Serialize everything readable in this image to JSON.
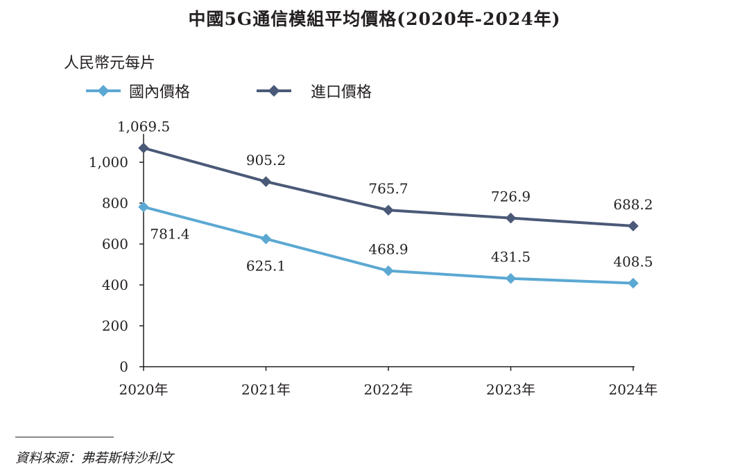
{
  "chart_data": {
    "type": "line",
    "title": "中國5G通信模組平均價格(2020年-2024年)",
    "ylabel": "人民幣元每片",
    "xlabel": "",
    "categories": [
      "2020年",
      "2021年",
      "2022年",
      "2023年",
      "2024年"
    ],
    "yticks": [
      "0",
      "200",
      "400",
      "600",
      "800",
      "1,000"
    ],
    "ylim": [
      0,
      1150
    ],
    "legend_position": "top-left",
    "series": [
      {
        "name": "國內價格",
        "color": "#5ba8d3",
        "values": [
          781.4,
          625.1,
          468.9,
          431.5,
          408.5
        ],
        "labels": [
          "781.4",
          "625.1",
          "468.9",
          "431.5",
          "408.5"
        ],
        "label_position": [
          "below",
          "below",
          "above",
          "above",
          "above"
        ]
      },
      {
        "name": "進口價格",
        "color": "#4a5977",
        "values": [
          1069.5,
          905.2,
          765.7,
          726.9,
          688.2
        ],
        "labels": [
          "1,069.5",
          "905.2",
          "765.7",
          "726.9",
          "688.2"
        ],
        "label_position": [
          "above",
          "above",
          "above",
          "above",
          "above"
        ]
      }
    ]
  },
  "source": "資料來源：弗若斯特沙利文"
}
